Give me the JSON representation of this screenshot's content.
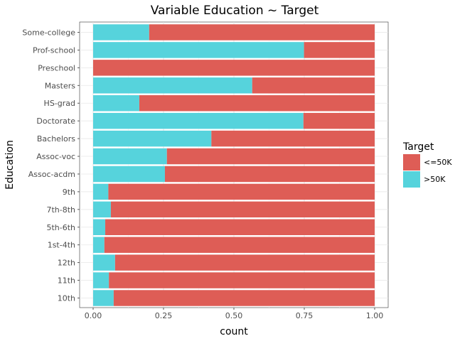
{
  "chart_data": {
    "type": "bar",
    "orientation": "horizontal",
    "stacked": true,
    "title": "Variable Education ~ Target",
    "xlabel": "count",
    "ylabel": "Education",
    "xlim": [
      0,
      1
    ],
    "x_ticks": [
      "0.00",
      "0.25",
      "0.50",
      "0.75",
      "1.00"
    ],
    "x_tick_values": [
      0,
      0.25,
      0.5,
      0.75,
      1.0
    ],
    "grid": true,
    "legend_position": "right",
    "legend_title": "Target",
    "categories": [
      "Some-college",
      "Prof-school",
      "Preschool",
      "Masters",
      "HS-grad",
      "Doctorate",
      "Bachelors",
      "Assoc-voc",
      "Assoc-acdm",
      "9th",
      "7th-8th",
      "5th-6th",
      "1st-4th",
      "12th",
      "11th",
      "10th"
    ],
    "series": [
      {
        "name": ">50K",
        "color": "#56d3dc",
        "values": [
          0.199,
          0.749,
          0.0,
          0.565,
          0.164,
          0.747,
          0.42,
          0.262,
          0.255,
          0.054,
          0.063,
          0.043,
          0.04,
          0.078,
          0.056,
          0.073
        ]
      },
      {
        "name": "<=50K",
        "color": "#de5d56",
        "values": [
          0.801,
          0.251,
          1.0,
          0.435,
          0.836,
          0.253,
          0.58,
          0.738,
          0.745,
          0.946,
          0.937,
          0.957,
          0.96,
          0.922,
          0.944,
          0.927
        ]
      }
    ],
    "legend_order": [
      "<=50K",
      ">50K"
    ]
  }
}
